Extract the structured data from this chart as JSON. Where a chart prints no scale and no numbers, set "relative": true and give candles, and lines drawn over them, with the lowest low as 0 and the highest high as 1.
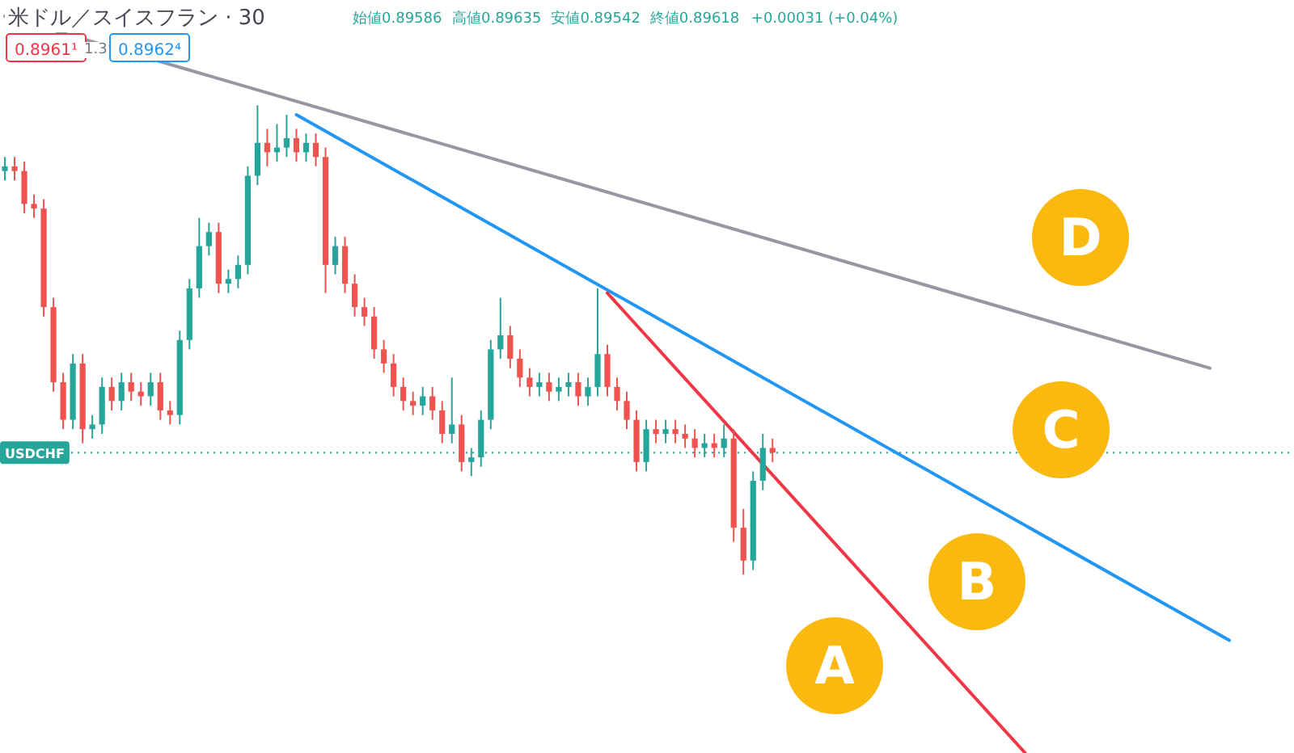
{
  "chart_data": {
    "type": "candlestick",
    "title": "米ドル／スイスフラン · 30",
    "relative": true,
    "tick_labels": false,
    "categories": [
      null,
      null,
      null,
      null,
      null,
      null,
      null,
      null,
      null,
      null,
      null,
      null,
      null,
      null,
      null,
      null,
      null,
      null,
      null,
      null,
      null,
      null,
      null,
      null,
      null,
      null,
      null,
      null,
      null,
      null,
      null,
      null,
      null,
      null,
      null,
      null,
      null,
      null,
      null,
      null,
      null,
      null,
      null,
      null,
      null,
      null,
      null,
      null,
      null,
      null,
      null,
      null,
      null,
      null,
      null,
      null,
      null,
      null,
      null,
      null,
      null,
      null,
      null,
      null,
      null,
      null,
      null,
      null,
      null,
      null,
      null,
      null,
      null,
      null,
      null,
      null,
      null,
      null,
      null,
      null,
      null,
      null,
      null,
      null,
      null,
      null,
      null,
      null,
      null,
      null,
      null,
      null,
      null,
      null,
      null,
      null,
      null,
      null,
      null,
      null,
      null,
      null,
      null,
      null,
      null,
      null,
      null,
      null,
      null,
      null,
      null,
      null,
      null,
      null,
      null,
      null,
      null,
      null,
      null,
      null,
      null,
      null,
      null,
      null,
      null,
      null,
      null
    ],
    "ohlc": [
      [
        0.86,
        0.89,
        0.84,
        0.87
      ],
      [
        0.87,
        0.89,
        0.84,
        0.86
      ],
      [
        0.86,
        0.88,
        0.77,
        0.79
      ],
      [
        0.79,
        0.81,
        0.76,
        0.78
      ],
      [
        0.78,
        0.8,
        0.55,
        0.57
      ],
      [
        0.57,
        0.59,
        0.39,
        0.41
      ],
      [
        0.41,
        0.43,
        0.31,
        0.33
      ],
      [
        0.33,
        0.47,
        0.31,
        0.45
      ],
      [
        0.45,
        0.47,
        0.28,
        0.31
      ],
      [
        0.31,
        0.34,
        0.29,
        0.32
      ],
      [
        0.32,
        0.42,
        0.3,
        0.4
      ],
      [
        0.4,
        0.42,
        0.35,
        0.37
      ],
      [
        0.37,
        0.43,
        0.35,
        0.41
      ],
      [
        0.41,
        0.43,
        0.37,
        0.39
      ],
      [
        0.39,
        0.41,
        0.36,
        0.38
      ],
      [
        0.38,
        0.43,
        0.36,
        0.41
      ],
      [
        0.41,
        0.43,
        0.33,
        0.35
      ],
      [
        0.35,
        0.37,
        0.32,
        0.34
      ],
      [
        0.34,
        0.52,
        0.32,
        0.5
      ],
      [
        0.5,
        0.63,
        0.48,
        0.61
      ],
      [
        0.61,
        0.76,
        0.59,
        0.7
      ],
      [
        0.7,
        0.75,
        0.68,
        0.73
      ],
      [
        0.73,
        0.75,
        0.6,
        0.62
      ],
      [
        0.62,
        0.65,
        0.6,
        0.63
      ],
      [
        0.63,
        0.68,
        0.61,
        0.66
      ],
      [
        0.66,
        0.87,
        0.64,
        0.85
      ],
      [
        0.85,
        1.0,
        0.83,
        0.92
      ],
      [
        0.92,
        0.95,
        0.87,
        0.9
      ],
      [
        0.9,
        0.96,
        0.88,
        0.91
      ],
      [
        0.91,
        0.98,
        0.89,
        0.93
      ],
      [
        0.93,
        0.95,
        0.88,
        0.9
      ],
      [
        0.9,
        0.94,
        0.88,
        0.92
      ],
      [
        0.92,
        0.94,
        0.87,
        0.89
      ],
      [
        0.89,
        0.91,
        0.6,
        0.66
      ],
      [
        0.66,
        0.72,
        0.64,
        0.7
      ],
      [
        0.7,
        0.72,
        0.6,
        0.62
      ],
      [
        0.62,
        0.64,
        0.55,
        0.57
      ],
      [
        0.57,
        0.59,
        0.53,
        0.55
      ],
      [
        0.55,
        0.57,
        0.46,
        0.48
      ],
      [
        0.48,
        0.5,
        0.43,
        0.45
      ],
      [
        0.45,
        0.47,
        0.38,
        0.4
      ],
      [
        0.4,
        0.42,
        0.35,
        0.37
      ],
      [
        0.37,
        0.39,
        0.34,
        0.36
      ],
      [
        0.36,
        0.4,
        0.34,
        0.38
      ],
      [
        0.38,
        0.4,
        0.33,
        0.35
      ],
      [
        0.35,
        0.37,
        0.28,
        0.3
      ],
      [
        0.3,
        0.42,
        0.28,
        0.32
      ],
      [
        0.32,
        0.34,
        0.22,
        0.24
      ],
      [
        0.24,
        0.27,
        0.21,
        0.25
      ],
      [
        0.25,
        0.35,
        0.23,
        0.33
      ],
      [
        0.33,
        0.5,
        0.31,
        0.48
      ],
      [
        0.48,
        0.59,
        0.46,
        0.51
      ],
      [
        0.51,
        0.53,
        0.44,
        0.46
      ],
      [
        0.46,
        0.48,
        0.4,
        0.42
      ],
      [
        0.42,
        0.44,
        0.38,
        0.4
      ],
      [
        0.4,
        0.43,
        0.38,
        0.41
      ],
      [
        0.41,
        0.43,
        0.37,
        0.39
      ],
      [
        0.39,
        0.42,
        0.37,
        0.4
      ],
      [
        0.4,
        0.43,
        0.38,
        0.41
      ],
      [
        0.41,
        0.43,
        0.36,
        0.38
      ],
      [
        0.38,
        0.42,
        0.36,
        0.4
      ],
      [
        0.4,
        0.61,
        0.38,
        0.47
      ],
      [
        0.47,
        0.49,
        0.38,
        0.4
      ],
      [
        0.4,
        0.42,
        0.35,
        0.37
      ],
      [
        0.37,
        0.39,
        0.31,
        0.33
      ],
      [
        0.33,
        0.35,
        0.22,
        0.24
      ],
      [
        0.24,
        0.33,
        0.22,
        0.31
      ],
      [
        0.31,
        0.33,
        0.28,
        0.3
      ],
      [
        0.3,
        0.33,
        0.28,
        0.31
      ],
      [
        0.31,
        0.33,
        0.28,
        0.3
      ],
      [
        0.3,
        0.32,
        0.27,
        0.29
      ],
      [
        0.29,
        0.31,
        0.25,
        0.27
      ],
      [
        0.27,
        0.3,
        0.25,
        0.28
      ],
      [
        0.28,
        0.3,
        0.25,
        0.27
      ],
      [
        0.27,
        0.32,
        0.25,
        0.29
      ],
      [
        0.29,
        0.31,
        0.07,
        0.1
      ],
      [
        0.1,
        0.14,
        0.0,
        0.03
      ],
      [
        0.03,
        0.22,
        0.01,
        0.2
      ],
      [
        0.2,
        0.3,
        0.18,
        0.27
      ],
      [
        0.27,
        0.29,
        0.24,
        0.26
      ],
      null,
      null,
      null,
      null,
      null,
      null,
      null,
      null,
      null,
      null,
      null,
      null,
      null,
      null,
      null,
      null,
      null,
      null,
      null,
      null,
      null,
      null,
      null,
      null,
      null,
      null,
      null,
      null,
      null,
      null,
      null,
      null,
      null,
      null,
      null,
      null,
      null,
      null,
      null,
      null,
      null,
      null,
      null,
      null,
      null,
      null,
      null
    ],
    "colors": [
      "#26a69a",
      "#ef5350",
      "#ef5350",
      "#ef5350",
      "#ef5350",
      "#ef5350",
      "#ef5350",
      "#26a69a",
      "#ef5350",
      "#26a69a",
      "#26a69a",
      "#ef5350",
      "#26a69a",
      "#ef5350",
      "#ef5350",
      "#26a69a",
      "#ef5350",
      "#ef5350",
      "#26a69a",
      "#26a69a",
      "#26a69a",
      "#26a69a",
      "#ef5350",
      "#26a69a",
      "#26a69a",
      "#26a69a",
      "#26a69a",
      "#ef5350",
      "#26a69a",
      "#26a69a",
      "#ef5350",
      "#26a69a",
      "#ef5350",
      "#ef5350",
      "#26a69a",
      "#ef5350",
      "#ef5350",
      "#ef5350",
      "#ef5350",
      "#ef5350",
      "#ef5350",
      "#ef5350",
      "#ef5350",
      "#26a69a",
      "#ef5350",
      "#ef5350",
      "#26a69a",
      "#ef5350",
      "#26a69a",
      "#26a69a",
      "#26a69a",
      "#26a69a",
      "#ef5350",
      "#ef5350",
      "#ef5350",
      "#26a69a",
      "#ef5350",
      "#26a69a",
      "#26a69a",
      "#ef5350",
      "#26a69a",
      "#26a69a",
      "#ef5350",
      "#ef5350",
      "#ef5350",
      "#ef5350",
      "#26a69a",
      "#ef5350",
      "#26a69a",
      "#ef5350",
      "#ef5350",
      "#ef5350",
      "#26a69a",
      "#ef5350",
      "#26a69a",
      "#ef5350",
      "#ef5350",
      "#26a69a",
      "#26a69a",
      "#ef5350",
      null,
      null,
      null,
      null,
      null,
      null,
      null,
      null,
      null,
      null,
      null,
      null,
      null,
      null,
      null,
      null,
      null,
      null,
      null,
      null,
      null,
      null,
      null,
      null,
      null,
      null,
      null,
      null,
      null,
      null,
      null,
      null,
      null,
      null,
      null,
      null,
      null,
      null,
      null,
      null,
      null,
      null,
      null,
      null,
      null,
      null,
      null
    ],
    "series": [
      {
        "type": "line",
        "color": "#9598a1",
        "values": [
          1.19,
          null,
          null,
          null,
          null,
          null,
          null,
          null,
          null,
          null,
          null,
          null,
          null,
          null,
          null,
          null,
          null,
          null,
          null,
          null,
          null,
          null,
          null,
          null,
          null,
          null,
          null,
          null,
          null,
          null,
          null,
          null,
          null,
          null,
          null,
          null,
          null,
          null,
          null,
          null,
          null,
          null,
          null,
          null,
          null,
          null,
          null,
          null,
          null,
          null,
          null,
          null,
          null,
          null,
          null,
          null,
          null,
          null,
          null,
          null,
          null,
          null,
          null,
          null,
          null,
          null,
          null,
          null,
          null,
          null,
          null,
          null,
          null,
          null,
          null,
          null,
          null,
          null,
          null,
          null,
          null,
          null,
          null,
          null,
          null,
          null,
          null,
          null,
          null,
          null,
          null,
          null,
          null,
          null,
          null,
          null,
          null,
          null,
          null,
          null,
          null,
          null,
          null,
          null,
          null,
          null,
          null,
          null,
          null,
          null,
          null,
          null,
          null,
          null,
          null,
          null,
          null,
          null,
          null,
          null,
          null,
          null,
          null,
          null,
          0.44,
          null,
          null
        ]
      },
      {
        "type": "line",
        "color": "#2196f3",
        "values": [
          null,
          null,
          null,
          null,
          null,
          null,
          null,
          null,
          null,
          null,
          null,
          null,
          null,
          null,
          null,
          null,
          null,
          null,
          null,
          null,
          null,
          null,
          null,
          null,
          null,
          null,
          null,
          null,
          null,
          null,
          0.98,
          null,
          null,
          null,
          null,
          null,
          null,
          null,
          null,
          null,
          null,
          null,
          null,
          null,
          null,
          null,
          null,
          null,
          null,
          null,
          null,
          null,
          null,
          null,
          null,
          null,
          null,
          null,
          null,
          null,
          null,
          null,
          null,
          null,
          null,
          null,
          null,
          null,
          null,
          null,
          null,
          null,
          null,
          null,
          null,
          null,
          null,
          null,
          null,
          null,
          null,
          null,
          null,
          null,
          null,
          null,
          null,
          null,
          null,
          null,
          null,
          null,
          null,
          null,
          null,
          null,
          null,
          null,
          null,
          null,
          null,
          null,
          null,
          null,
          null,
          null,
          null,
          null,
          null,
          null,
          null,
          null,
          null,
          null,
          null,
          null,
          null,
          null,
          null,
          null,
          null,
          null,
          null,
          null,
          null,
          null,
          -0.14
        ]
      },
      {
        "type": "line",
        "color": "#f23645",
        "values": [
          null,
          null,
          null,
          null,
          null,
          null,
          null,
          null,
          null,
          null,
          null,
          null,
          null,
          null,
          null,
          null,
          null,
          null,
          null,
          null,
          null,
          null,
          null,
          null,
          null,
          null,
          null,
          null,
          null,
          null,
          null,
          null,
          null,
          null,
          null,
          null,
          null,
          null,
          null,
          null,
          null,
          null,
          null,
          null,
          null,
          null,
          null,
          null,
          null,
          null,
          null,
          null,
          null,
          null,
          null,
          null,
          null,
          null,
          null,
          null,
          null,
          null,
          0.6,
          null,
          null,
          null,
          null,
          null,
          null,
          null,
          null,
          null,
          null,
          null,
          null,
          null,
          null,
          null,
          null,
          null,
          null,
          null,
          null,
          null,
          null,
          null,
          null,
          null,
          null,
          null,
          null,
          null,
          null,
          null,
          null,
          null,
          null,
          null,
          null,
          null,
          null,
          null,
          null,
          null,
          null,
          -0.38,
          null,
          null,
          null,
          null,
          null,
          null,
          null,
          null,
          null,
          null,
          null,
          null,
          null,
          null,
          null,
          null,
          null,
          null,
          null,
          null,
          null
        ]
      }
    ],
    "ref_lines": [
      {
        "axis": "y",
        "value": 0.26,
        "label": "USDCHF",
        "color": "#26a69a",
        "line_style": "dotted"
      }
    ],
    "annotations": [
      "始値0.89586",
      "高値0.89635",
      "安値0.89542",
      "終値0.89618",
      "+0.00031 (+0.04%)",
      "0.8961¹",
      "1.3",
      "0.8962⁴",
      "D",
      "C",
      "B",
      "A"
    ]
  }
}
